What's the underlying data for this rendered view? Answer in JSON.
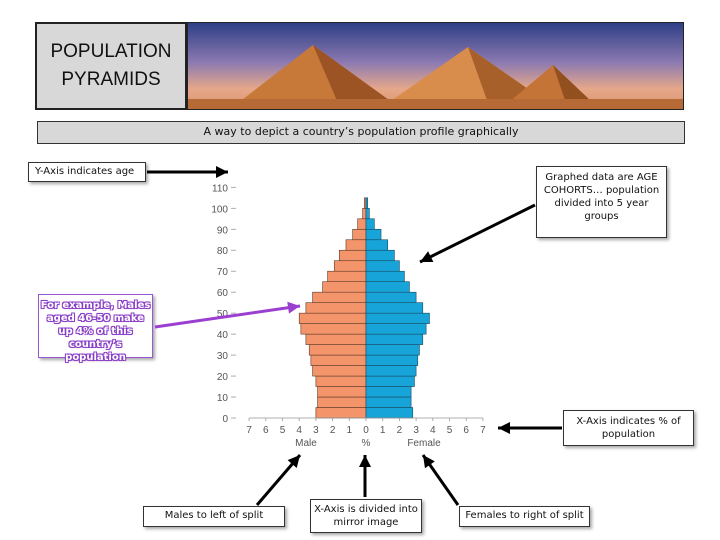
{
  "title": "POPULATION PYRAMIDS",
  "subtitle": "A way to depict a country’s population profile graphically",
  "callouts": {
    "yaxis": "Y-Axis indicates age",
    "graphed": "Graphed data are AGE COHORTS… population divided into 5 year groups",
    "example": "For example, Males aged 46-50 make up 4% of this country’s population",
    "xaxis": "X-Axis indicates % of population",
    "males": "Males to left of split",
    "mirror": "X-Axis is divided into mirror image",
    "females": "Females to right of split"
  },
  "colors": {
    "male": "#f4946a",
    "female": "#17a5d9",
    "arrow": "#000000",
    "example_arrow": "#9b3fd0"
  },
  "chart_data": {
    "type": "bar",
    "orientation": "horizontal-pyramid",
    "age_ticks": [
      "0",
      "10",
      "20",
      "30",
      "40",
      "50",
      "60",
      "70",
      "80",
      "90",
      "100",
      "110"
    ],
    "x_ticks": [
      "7",
      "6",
      "5",
      "4",
      "3",
      "2",
      "1",
      "0",
      "1",
      "2",
      "3",
      "4",
      "5",
      "6",
      "7"
    ],
    "xlabel_left": "Male",
    "xlabel_center": "%",
    "xlabel_right": "Female",
    "xlim": [
      -7,
      7
    ],
    "ylim": [
      0,
      110
    ],
    "age_groups": [
      "0-4",
      "5-9",
      "10-14",
      "15-19",
      "20-24",
      "25-29",
      "30-34",
      "35-39",
      "40-44",
      "45-49",
      "50-54",
      "55-59",
      "60-64",
      "65-69",
      "70-74",
      "75-79",
      "80-84",
      "85-89",
      "90-94",
      "95-99",
      "100-104"
    ],
    "series": [
      {
        "name": "Male",
        "values": [
          3.0,
          2.9,
          2.9,
          3.0,
          3.2,
          3.3,
          3.4,
          3.6,
          3.9,
          4.0,
          3.6,
          3.2,
          2.6,
          2.3,
          1.9,
          1.6,
          1.2,
          0.8,
          0.5,
          0.2,
          0.1
        ]
      },
      {
        "name": "Female",
        "values": [
          2.8,
          2.7,
          2.7,
          2.9,
          3.0,
          3.1,
          3.2,
          3.4,
          3.6,
          3.8,
          3.4,
          3.0,
          2.6,
          2.3,
          2.0,
          1.7,
          1.3,
          0.9,
          0.5,
          0.2,
          0.1
        ]
      }
    ]
  }
}
